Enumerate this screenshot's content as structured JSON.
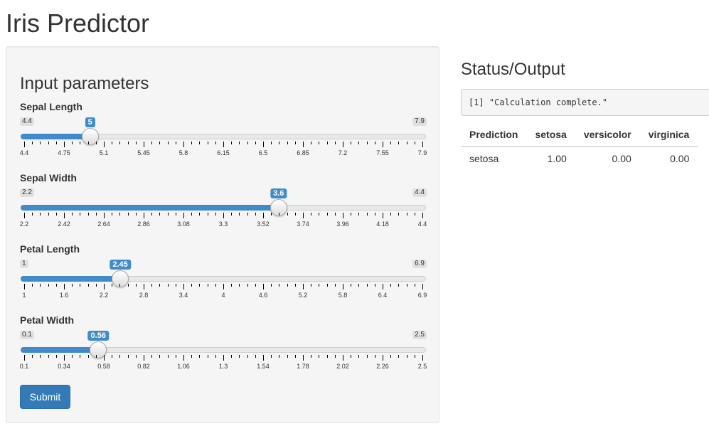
{
  "app": {
    "title": "Iris Predictor"
  },
  "sidebar": {
    "heading": "Input parameters",
    "sliders": [
      {
        "id": "sepal-length",
        "label": "Sepal Length",
        "min": 4.4,
        "max": 7.9,
        "value": 5,
        "min_label": "4.4",
        "max_label": "7.9",
        "value_label": "5",
        "ticks": [
          "4.4",
          "4.75",
          "5.1",
          "5.45",
          "5.8",
          "6.15",
          "6.5",
          "6.85",
          "7.2",
          "7.55",
          "7.9"
        ]
      },
      {
        "id": "sepal-width",
        "label": "Sepal Width",
        "min": 2.2,
        "max": 4.4,
        "value": 3.6,
        "min_label": "2.2",
        "max_label": "4.4",
        "value_label": "3.6",
        "ticks": [
          "2.2",
          "2.42",
          "2.64",
          "2.86",
          "3.08",
          "3.3",
          "3.52",
          "3.74",
          "3.96",
          "4.18",
          "4.4"
        ]
      },
      {
        "id": "petal-length",
        "label": "Petal Length",
        "min": 1,
        "max": 6.9,
        "value": 2.45,
        "min_label": "1",
        "max_label": "6.9",
        "value_label": "2.45",
        "ticks": [
          "1",
          "1.6",
          "2.2",
          "2.8",
          "3.4",
          "4",
          "4.6",
          "5.2",
          "5.8",
          "6.4",
          "6.9"
        ]
      },
      {
        "id": "petal-width",
        "label": "Petal Width",
        "min": 0.1,
        "max": 2.5,
        "value": 0.56,
        "min_label": "0.1",
        "max_label": "2.5",
        "value_label": "0.56",
        "ticks": [
          "0.1",
          "0.34",
          "0.58",
          "0.82",
          "1.06",
          "1.3",
          "1.54",
          "1.78",
          "2.02",
          "2.26",
          "2.5"
        ]
      }
    ],
    "submit_label": "Submit"
  },
  "main": {
    "heading": "Status/Output",
    "status_text": "[1] \"Calculation complete.\"",
    "table": {
      "headers": [
        "Prediction",
        "setosa",
        "versicolor",
        "virginica"
      ],
      "rows": [
        [
          "setosa",
          "1.00",
          "0.00",
          "0.00"
        ]
      ]
    }
  },
  "colors": {
    "accent": "#428bca",
    "button": "#337ab7",
    "panel_bg": "#f5f5f5"
  }
}
